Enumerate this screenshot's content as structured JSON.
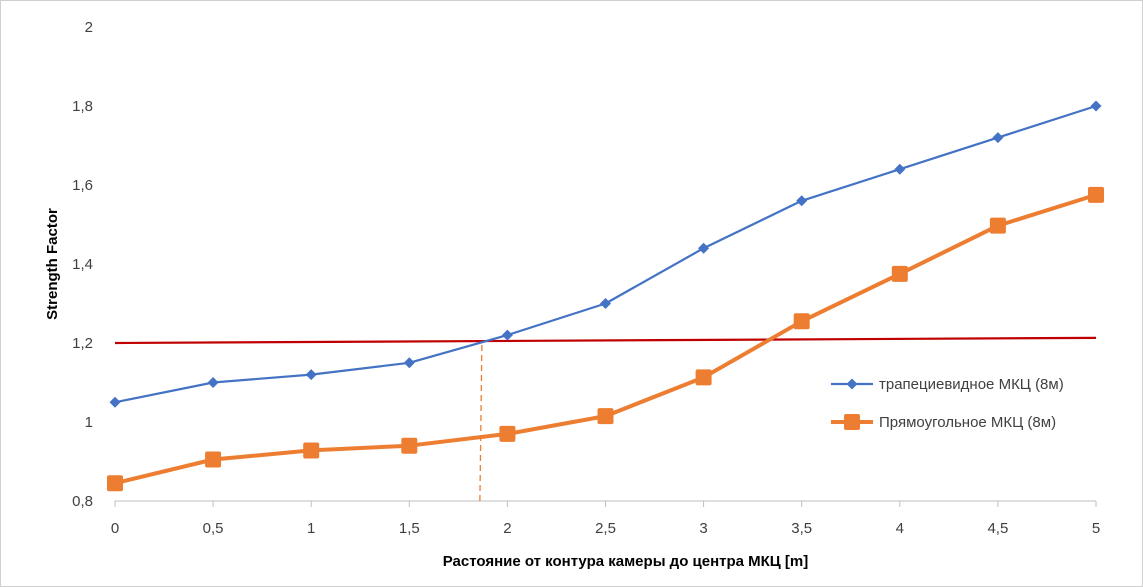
{
  "chart_data": {
    "type": "line",
    "title": "",
    "xlabel": "Растояние от контура камеры до центра МКЦ [m]",
    "ylabel": "Strength Factor",
    "x": [
      0,
      0.5,
      1,
      1.5,
      2,
      2.5,
      3,
      3.5,
      4,
      4.5,
      5
    ],
    "x_tick_labels": [
      "0",
      "0,5",
      "1",
      "1,5",
      "2",
      "2,5",
      "3",
      "3,5",
      "4",
      "4,5",
      "5"
    ],
    "y_tick_values": [
      0.8,
      1,
      1.2,
      1.4,
      1.6,
      1.8,
      2
    ],
    "y_tick_labels": [
      "0,8",
      "1",
      "1,2",
      "1,4",
      "1,6",
      "1,8",
      "2"
    ],
    "xlim": [
      0,
      5
    ],
    "ylim": [
      0.8,
      2
    ],
    "grid": false,
    "legend_position": "right",
    "series": [
      {
        "name": "трапециевидное МКЦ (8м)",
        "color": "#4472C4",
        "marker": "diamond",
        "values": [
          1.05,
          1.1,
          1.12,
          1.15,
          1.22,
          1.3,
          1.44,
          1.56,
          1.64,
          1.72,
          1.8
        ]
      },
      {
        "name": "Прямоугольное МКЦ (8м)",
        "color": "#ED7D31",
        "marker": "square",
        "values": [
          0.845,
          0.905,
          0.928,
          0.94,
          0.97,
          1.015,
          1.113,
          1.255,
          1.375,
          1.497,
          1.575
        ]
      }
    ],
    "reference_line": {
      "color": "#C00000",
      "y_start": 1.2,
      "y_end": 1.213,
      "x_start": 0,
      "x_end": 5
    },
    "dashed_marker": {
      "color": "#ED7D31",
      "x": 1.87,
      "y_from": 0.8,
      "y_to": 1.2
    }
  }
}
